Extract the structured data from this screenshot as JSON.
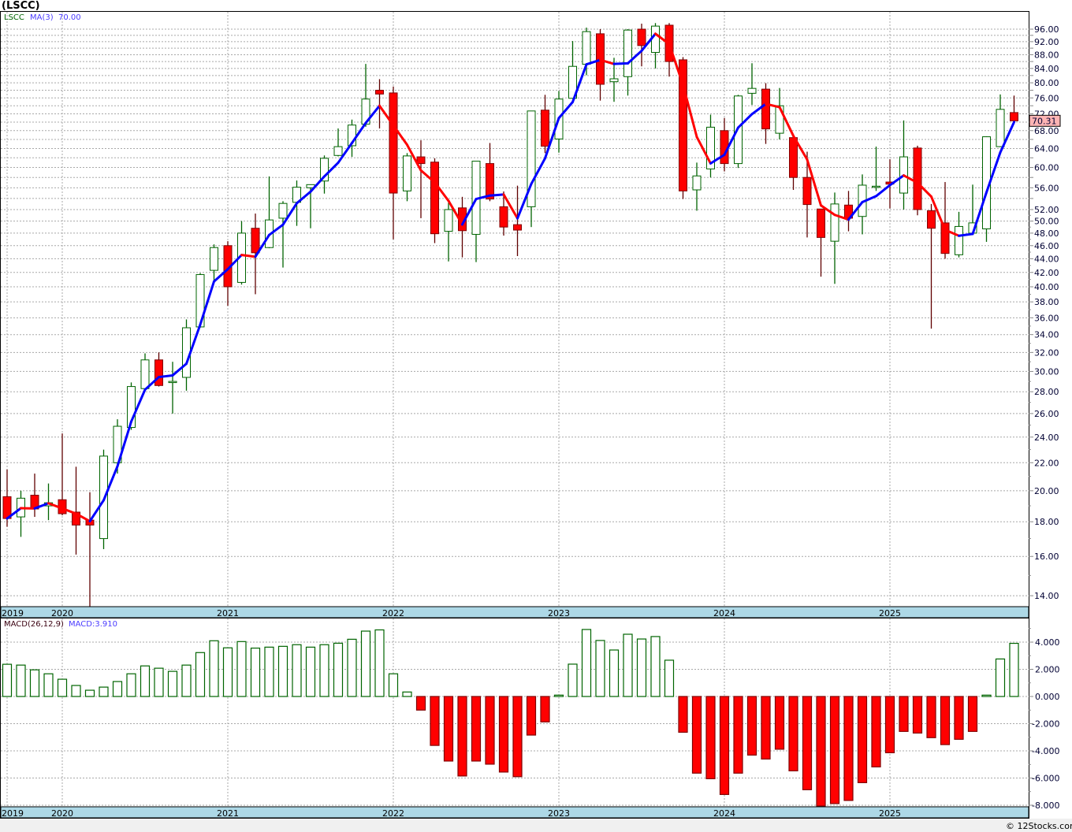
{
  "title": "(LSCC)",
  "legend": {
    "symbol": "LSCC",
    "ma_label": "MA(3)",
    "ma_value": "70.00"
  },
  "macd_legend": {
    "label": "MACD(26,12,9)",
    "value": "MACD:3.910"
  },
  "last_price": "70.31",
  "footer": "© 12Stocks.com",
  "colors": {
    "up": "#006400",
    "down": "#ff0000",
    "ma_up": "#0000ff",
    "ma_down": "#ff0000",
    "date_strip": "#add8e6",
    "last_price_bg": "#ffb4b4"
  },
  "chart_data": [
    {
      "type": "candlestick",
      "name": "LSCC monthly",
      "interval": "month",
      "yscale": "log",
      "ylim": [
        13.4,
        99
      ],
      "y_ticks": [
        "14.00",
        "16.00",
        "18.00",
        "20.00",
        "22.00",
        "24.00",
        "26.00",
        "28.00",
        "30.00",
        "32.00",
        "34.00",
        "36.00",
        "38.00",
        "40.00",
        "42.00",
        "44.00",
        "46.00",
        "48.00",
        "50.00",
        "52.00",
        "56.00",
        "60.00",
        "64.00",
        "68.00",
        "72.00",
        "76.00",
        "80.00",
        "84.00",
        "88.00",
        "92.00",
        "96.00"
      ],
      "year_ticks": [
        {
          "label": "2019",
          "index": 0
        },
        {
          "label": "2020",
          "index": 4
        },
        {
          "label": "2021",
          "index": 16
        },
        {
          "label": "2022",
          "index": 28
        },
        {
          "label": "2023",
          "index": 40
        },
        {
          "label": "2024",
          "index": 52
        },
        {
          "label": "2025",
          "index": 64
        }
      ],
      "ma_period": 3,
      "ohlc": [
        [
          19.6,
          21.5,
          17.7,
          18.2
        ],
        [
          18.3,
          20.0,
          17.1,
          19.5
        ],
        [
          19.7,
          21.2,
          18.3,
          18.8
        ],
        [
          19.0,
          20.5,
          18.1,
          19.2
        ],
        [
          19.4,
          24.3,
          18.4,
          18.5
        ],
        [
          18.6,
          21.7,
          16.1,
          17.8
        ],
        [
          18.1,
          19.9,
          13.4,
          17.8
        ],
        [
          17.0,
          23.0,
          16.4,
          22.5
        ],
        [
          22.0,
          25.5,
          21.2,
          24.9
        ],
        [
          24.8,
          28.9,
          24.6,
          28.5
        ],
        [
          28.3,
          31.9,
          28.2,
          31.2
        ],
        [
          31.2,
          32.0,
          28.5,
          28.6
        ],
        [
          28.9,
          31.0,
          26.0,
          29.0
        ],
        [
          29.4,
          35.8,
          28.1,
          34.8
        ],
        [
          34.9,
          41.9,
          34.8,
          41.7
        ],
        [
          42.3,
          46.2,
          40.9,
          45.7
        ],
        [
          46.0,
          46.7,
          37.5,
          40.0
        ],
        [
          40.6,
          50.0,
          40.3,
          48.0
        ],
        [
          48.8,
          51.3,
          39.0,
          44.9
        ],
        [
          45.7,
          58.2,
          45.6,
          50.2
        ],
        [
          50.5,
          53.5,
          42.7,
          53.1
        ],
        [
          53.3,
          57.4,
          49.2,
          56.1
        ],
        [
          56.0,
          56.6,
          48.8,
          56.6
        ],
        [
          57.3,
          62.5,
          54.9,
          61.9
        ],
        [
          62.5,
          68.5,
          62.3,
          64.4
        ],
        [
          64.6,
          70.6,
          62.2,
          69.3
        ],
        [
          69.5,
          85.3,
          68.9,
          75.7
        ],
        [
          78.0,
          81.0,
          68.5,
          77.0
        ],
        [
          77.3,
          79.0,
          47.0,
          55.0
        ],
        [
          55.4,
          63.0,
          53.5,
          62.4
        ],
        [
          62.2,
          65.8,
          50.5,
          60.8
        ],
        [
          61.1,
          61.9,
          46.4,
          47.9
        ],
        [
          48.3,
          53.2,
          43.6,
          52.0
        ],
        [
          52.3,
          54.3,
          44.2,
          48.4
        ],
        [
          47.8,
          61.3,
          43.5,
          61.3
        ],
        [
          60.8,
          65.2,
          53.5,
          53.9
        ],
        [
          52.5,
          55.3,
          47.6,
          49.0
        ],
        [
          49.4,
          56.4,
          44.4,
          48.5
        ],
        [
          52.5,
          72.7,
          49.0,
          72.7
        ],
        [
          72.9,
          76.8,
          63.0,
          64.5
        ],
        [
          66.1,
          77.8,
          63.1,
          75.7
        ],
        [
          75.9,
          92.2,
          75.8,
          84.6
        ],
        [
          85.2,
          96.5,
          82.1,
          95.2
        ],
        [
          94.5,
          96.0,
          75.3,
          79.6
        ],
        [
          80.3,
          87.1,
          75.0,
          81.1
        ],
        [
          81.7,
          96.0,
          76.6,
          95.7
        ],
        [
          96.0,
          97.8,
          84.6,
          90.8
        ],
        [
          88.7,
          98.0,
          84.0,
          97.0
        ],
        [
          97.3,
          98.0,
          81.7,
          86.0
        ],
        [
          86.5,
          87.3,
          53.9,
          55.4
        ],
        [
          55.6,
          61.0,
          51.8,
          58.3
        ],
        [
          59.7,
          71.8,
          58.0,
          68.8
        ],
        [
          68.0,
          71.0,
          59.2,
          60.8
        ],
        [
          60.8,
          76.8,
          59.9,
          76.5
        ],
        [
          77.2,
          85.5,
          74.2,
          78.5
        ],
        [
          78.3,
          79.9,
          65.0,
          68.4
        ],
        [
          67.4,
          78.6,
          66.0,
          74.0
        ],
        [
          66.4,
          66.4,
          55.6,
          58.0
        ],
        [
          58.0,
          63.3,
          47.3,
          52.9
        ],
        [
          52.1,
          52.1,
          41.4,
          47.3
        ],
        [
          46.7,
          55.1,
          40.4,
          53.0
        ],
        [
          52.8,
          55.4,
          48.3,
          50.5
        ],
        [
          50.8,
          58.6,
          47.8,
          56.5
        ],
        [
          56.1,
          64.4,
          55.4,
          56.3
        ],
        [
          57.1,
          61.7,
          52.2,
          56.7
        ],
        [
          55.0,
          70.4,
          52.0,
          62.2
        ],
        [
          64.1,
          64.6,
          51.0,
          52.0
        ],
        [
          51.8,
          53.0,
          34.7,
          48.8
        ],
        [
          49.7,
          57.1,
          44.0,
          44.8
        ],
        [
          44.6,
          51.6,
          44.2,
          49.1
        ],
        [
          48.0,
          56.6,
          47.8,
          49.7
        ],
        [
          48.7,
          66.7,
          46.6,
          66.6
        ],
        [
          64.4,
          76.9,
          64.3,
          73.1
        ],
        [
          72.3,
          76.6,
          70.2,
          70.31
        ]
      ]
    },
    {
      "type": "bar",
      "name": "MACD histogram",
      "params": "26,12,9",
      "ylim": [
        -8.2,
        5.8
      ],
      "y_ticks": [
        "4.000",
        "2.000",
        "0.000",
        "-2.000",
        "-4.000",
        "-6.000",
        "-8.000"
      ],
      "values": [
        2.37,
        2.31,
        1.96,
        1.67,
        1.27,
        0.81,
        0.46,
        0.69,
        1.1,
        1.67,
        2.25,
        2.08,
        1.85,
        2.31,
        3.23,
        4.1,
        3.58,
        4.04,
        3.56,
        3.63,
        3.69,
        3.81,
        3.63,
        3.81,
        3.92,
        4.21,
        4.81,
        4.9,
        1.67,
        0.33,
        -1.0,
        -3.6,
        -4.75,
        -5.85,
        -4.75,
        -4.98,
        -5.56,
        -5.9,
        -2.84,
        -1.87,
        0.1,
        2.38,
        4.93,
        4.12,
        3.42,
        4.58,
        4.23,
        4.41,
        2.67,
        -2.63,
        -5.64,
        -6.05,
        -7.21,
        -5.64,
        -4.31,
        -4.6,
        -3.88,
        -5.47,
        -6.86,
        -8.15,
        -7.88,
        -7.65,
        -6.34,
        -5.18,
        -4.14,
        -2.57,
        -2.69,
        -3.03,
        -3.54,
        -3.15,
        -2.57,
        0.1,
        2.76,
        3.91
      ]
    }
  ]
}
